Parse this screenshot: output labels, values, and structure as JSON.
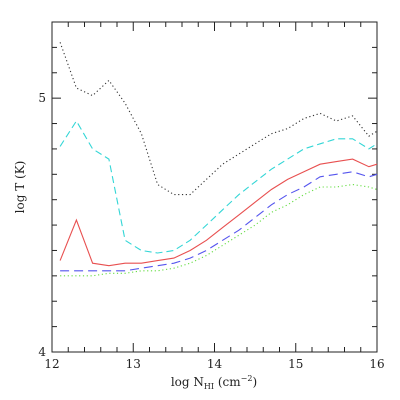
{
  "chart_data": {
    "type": "line",
    "xlim": [
      12,
      16
    ],
    "ylim": [
      4,
      5.3
    ],
    "grid": false,
    "xticks": [
      {
        "value": 12,
        "label": "12"
      },
      {
        "value": 13,
        "label": "13"
      },
      {
        "value": 14,
        "label": "14"
      },
      {
        "value": 15,
        "label": "15"
      },
      {
        "value": 16,
        "label": "16"
      }
    ],
    "yticks": [
      {
        "value": 4,
        "label": "4"
      },
      {
        "value": 5,
        "label": "5"
      }
    ],
    "xlabel": {
      "prefix": "log N",
      "sub": "HI",
      "suffix": " (cm",
      "sup": "−2",
      "end": ")"
    },
    "ylabel": "log T (K)",
    "series": [
      {
        "color": "#333333",
        "dash": "dotted",
        "x": [
          12.1,
          12.3,
          12.5,
          12.7,
          12.9,
          13.1,
          13.3,
          13.5,
          13.7,
          13.9,
          14.1,
          14.3,
          14.5,
          14.7,
          14.9,
          15.1,
          15.3,
          15.5,
          15.7,
          15.9,
          16.0
        ],
        "y": [
          5.22,
          5.04,
          5.01,
          5.07,
          4.98,
          4.86,
          4.66,
          4.62,
          4.62,
          4.68,
          4.74,
          4.78,
          4.82,
          4.86,
          4.88,
          4.92,
          4.94,
          4.91,
          4.93,
          4.85,
          4.87
        ]
      },
      {
        "color": "#33d6d6",
        "dash": "dashed",
        "x": [
          12.1,
          12.3,
          12.5,
          12.7,
          12.9,
          13.1,
          13.3,
          13.5,
          13.7,
          13.9,
          14.1,
          14.3,
          14.5,
          14.7,
          14.9,
          15.1,
          15.3,
          15.5,
          15.7,
          15.9,
          16.0
        ],
        "y": [
          4.81,
          4.91,
          4.8,
          4.76,
          4.44,
          4.4,
          4.39,
          4.4,
          4.44,
          4.5,
          4.56,
          4.62,
          4.67,
          4.72,
          4.76,
          4.8,
          4.82,
          4.84,
          4.84,
          4.8,
          4.82
        ]
      },
      {
        "color": "#e85050",
        "dash": "solid",
        "x": [
          12.1,
          12.3,
          12.5,
          12.7,
          12.9,
          13.1,
          13.3,
          13.5,
          13.7,
          13.9,
          14.1,
          14.3,
          14.5,
          14.7,
          14.9,
          15.1,
          15.3,
          15.5,
          15.7,
          15.9,
          16.0
        ],
        "y": [
          4.36,
          4.52,
          4.35,
          4.34,
          4.35,
          4.35,
          4.36,
          4.37,
          4.4,
          4.44,
          4.49,
          4.54,
          4.59,
          4.64,
          4.68,
          4.71,
          4.74,
          4.75,
          4.76,
          4.73,
          4.74
        ]
      },
      {
        "color": "#5555ee",
        "dash": "longdash",
        "x": [
          12.1,
          12.3,
          12.5,
          12.7,
          12.9,
          13.1,
          13.3,
          13.5,
          13.7,
          13.9,
          14.1,
          14.3,
          14.5,
          14.7,
          14.9,
          15.1,
          15.3,
          15.5,
          15.7,
          15.9,
          16.0
        ],
        "y": [
          4.32,
          4.32,
          4.32,
          4.32,
          4.32,
          4.33,
          4.34,
          4.35,
          4.37,
          4.4,
          4.44,
          4.48,
          4.53,
          4.58,
          4.62,
          4.65,
          4.69,
          4.7,
          4.71,
          4.69,
          4.7
        ]
      },
      {
        "color": "#66dd44",
        "dash": "dotted",
        "x": [
          12.1,
          12.3,
          12.5,
          12.7,
          12.9,
          13.1,
          13.3,
          13.5,
          13.7,
          13.9,
          14.1,
          14.3,
          14.5,
          14.7,
          14.9,
          15.1,
          15.3,
          15.5,
          15.7,
          15.9,
          16.0
        ],
        "y": [
          4.3,
          4.3,
          4.3,
          4.31,
          4.31,
          4.32,
          4.32,
          4.33,
          4.35,
          4.38,
          4.42,
          4.46,
          4.5,
          4.55,
          4.58,
          4.62,
          4.65,
          4.65,
          4.66,
          4.65,
          4.64
        ]
      }
    ]
  }
}
